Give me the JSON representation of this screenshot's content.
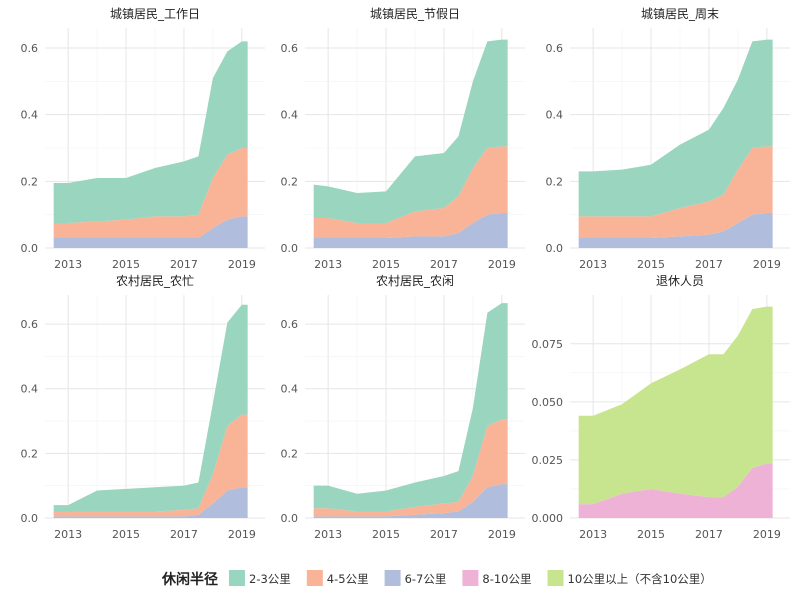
{
  "chart_data": [
    {
      "type": "area",
      "title": "城镇居民_工作日",
      "x": [
        2012.5,
        2013,
        2014,
        2015,
        2016,
        2017,
        2017.5,
        2018,
        2018.5,
        2019,
        2019.2
      ],
      "xticks": [
        2013,
        2015,
        2017,
        2019
      ],
      "yticks": [
        "0.0",
        "0.2",
        "0.4",
        "0.6"
      ],
      "ylim": [
        0,
        0.66
      ],
      "series": [
        {
          "name": "6-7公里",
          "values": [
            0.03,
            0.03,
            0.03,
            0.03,
            0.03,
            0.03,
            0.03,
            0.06,
            0.085,
            0.095,
            0.095
          ]
        },
        {
          "name": "4-5公里",
          "values": [
            0.045,
            0.045,
            0.05,
            0.055,
            0.065,
            0.065,
            0.07,
            0.15,
            0.195,
            0.205,
            0.205
          ]
        },
        {
          "name": "2-3公里",
          "values": [
            0.12,
            0.12,
            0.13,
            0.125,
            0.145,
            0.165,
            0.175,
            0.3,
            0.31,
            0.32,
            0.32
          ]
        }
      ]
    },
    {
      "type": "area",
      "title": "城镇居民_节假日",
      "x": [
        2012.5,
        2013,
        2014,
        2015,
        2016,
        2017,
        2017.5,
        2018,
        2018.5,
        2019,
        2019.2
      ],
      "xticks": [
        2013,
        2015,
        2017,
        2019
      ],
      "yticks": [
        "0.0",
        "0.2",
        "0.4",
        "0.6"
      ],
      "ylim": [
        0,
        0.66
      ],
      "series": [
        {
          "name": "6-7公里",
          "values": [
            0.03,
            0.03,
            0.03,
            0.03,
            0.035,
            0.035,
            0.045,
            0.075,
            0.1,
            0.105,
            0.105
          ]
        },
        {
          "name": "4-5公里",
          "values": [
            0.06,
            0.06,
            0.045,
            0.045,
            0.075,
            0.085,
            0.11,
            0.165,
            0.2,
            0.2,
            0.2
          ]
        },
        {
          "name": "2-3公里",
          "values": [
            0.1,
            0.095,
            0.09,
            0.095,
            0.165,
            0.165,
            0.18,
            0.26,
            0.32,
            0.32,
            0.32
          ]
        }
      ]
    },
    {
      "type": "area",
      "title": "城镇居民_周末",
      "x": [
        2012.5,
        2013,
        2014,
        2015,
        2016,
        2017,
        2017.5,
        2018,
        2018.5,
        2019,
        2019.2
      ],
      "xticks": [
        2013,
        2015,
        2017,
        2019
      ],
      "yticks": [
        "0.0",
        "0.2",
        "0.4",
        "0.6"
      ],
      "ylim": [
        0,
        0.66
      ],
      "series": [
        {
          "name": "6-7公里",
          "values": [
            0.03,
            0.03,
            0.03,
            0.03,
            0.035,
            0.04,
            0.05,
            0.075,
            0.1,
            0.105,
            0.105
          ]
        },
        {
          "name": "4-5公里",
          "values": [
            0.065,
            0.065,
            0.065,
            0.065,
            0.085,
            0.1,
            0.11,
            0.16,
            0.2,
            0.2,
            0.2
          ]
        },
        {
          "name": "2-3公里",
          "values": [
            0.135,
            0.135,
            0.14,
            0.155,
            0.19,
            0.215,
            0.26,
            0.27,
            0.32,
            0.32,
            0.32
          ]
        }
      ]
    },
    {
      "type": "area",
      "title": "农村居民_农忙",
      "x": [
        2012.5,
        2013,
        2014,
        2015,
        2016,
        2017,
        2017.5,
        2018,
        2018.5,
        2019,
        2019.2
      ],
      "xticks": [
        2013,
        2015,
        2017,
        2019
      ],
      "yticks": [
        "0.0",
        "0.2",
        "0.4",
        "0.6"
      ],
      "ylim": [
        0,
        0.69
      ],
      "series": [
        {
          "name": "6-7公里",
          "values": [
            0.005,
            0.005,
            0.005,
            0.005,
            0.005,
            0.005,
            0.01,
            0.045,
            0.085,
            0.095,
            0.095
          ]
        },
        {
          "name": "4-5公里",
          "values": [
            0.015,
            0.015,
            0.015,
            0.015,
            0.015,
            0.02,
            0.02,
            0.09,
            0.2,
            0.225,
            0.225
          ]
        },
        {
          "name": "2-3公里",
          "values": [
            0.02,
            0.02,
            0.065,
            0.07,
            0.075,
            0.075,
            0.08,
            0.22,
            0.32,
            0.34,
            0.34
          ]
        }
      ]
    },
    {
      "type": "area",
      "title": "农村居民_农闲",
      "x": [
        2012.5,
        2013,
        2014,
        2015,
        2016,
        2017,
        2017.5,
        2018,
        2018.5,
        2019,
        2019.2
      ],
      "xticks": [
        2013,
        2015,
        2017,
        2019
      ],
      "yticks": [
        "0.0",
        "0.2",
        "0.4",
        "0.6"
      ],
      "ylim": [
        0,
        0.69
      ],
      "series": [
        {
          "name": "6-7公里",
          "values": [
            0.005,
            0.005,
            0.005,
            0.005,
            0.01,
            0.015,
            0.02,
            0.05,
            0.095,
            0.105,
            0.105
          ]
        },
        {
          "name": "4-5公里",
          "values": [
            0.025,
            0.025,
            0.015,
            0.015,
            0.025,
            0.03,
            0.03,
            0.08,
            0.19,
            0.2,
            0.2
          ]
        },
        {
          "name": "2-3公里",
          "values": [
            0.07,
            0.07,
            0.055,
            0.065,
            0.075,
            0.085,
            0.095,
            0.21,
            0.35,
            0.36,
            0.36
          ]
        }
      ]
    },
    {
      "type": "area",
      "title": "退休人员",
      "x": [
        2012.5,
        2013,
        2014,
        2015,
        2016,
        2017,
        2017.5,
        2018,
        2018.5,
        2019,
        2019.2
      ],
      "xticks": [
        2013,
        2015,
        2017,
        2019
      ],
      "yticks": [
        "0.000",
        "0.025",
        "0.050",
        "0.075"
      ],
      "ylim": [
        0,
        0.096
      ],
      "series": [
        {
          "name": "8-10公里",
          "values": [
            0.006,
            0.006,
            0.0105,
            0.0125,
            0.0105,
            0.009,
            0.009,
            0.0135,
            0.0215,
            0.0235,
            0.0235
          ]
        },
        {
          "name": "10公里以上（不含10公里）",
          "values": [
            0.038,
            0.038,
            0.0385,
            0.0455,
            0.0535,
            0.0615,
            0.0615,
            0.065,
            0.0685,
            0.0675,
            0.0675
          ]
        }
      ]
    }
  ],
  "legend": {
    "title": "休闲半径",
    "items": [
      {
        "name": "2-3公里",
        "color": "#99d5bf"
      },
      {
        "name": "4-5公里",
        "color": "#f9b397"
      },
      {
        "name": "6-7公里",
        "color": "#b0bddc"
      },
      {
        "name": "8-10公里",
        "color": "#efb2d7"
      },
      {
        "name": "10公里以上（不含10公里）",
        "color": "#c7e58f"
      }
    ]
  },
  "colors": {
    "2-3公里": "#99d5bf",
    "4-5公里": "#f9b397",
    "6-7公里": "#b0bddc",
    "8-10公里": "#efb2d7",
    "10公里以上（不含10公里）": "#c7e58f"
  }
}
